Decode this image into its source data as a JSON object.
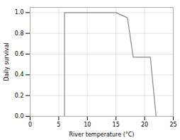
{
  "chart_data": {
    "type": "line",
    "xlabel": "River temperature (°C)",
    "ylabel": "Daily survival",
    "x": [
      0,
      5,
      6,
      6,
      15,
      17,
      18,
      21,
      22,
      23,
      25
    ],
    "values": [
      0,
      0,
      0,
      1.0,
      1.0,
      0.95,
      0.57,
      0.57,
      0.0,
      0.0,
      0.0
    ],
    "color": "#888888",
    "xlim": [
      0,
      25
    ],
    "ylim": [
      0.0,
      1.05
    ],
    "xticks": [
      0,
      5,
      10,
      15,
      20,
      25
    ],
    "yticks": [
      {
        "value": 0,
        "label": "0.0"
      },
      0.2,
      0.4,
      0.6,
      0.8,
      {
        "value": 1,
        "label": "1.0"
      }
    ],
    "grid": true
  }
}
